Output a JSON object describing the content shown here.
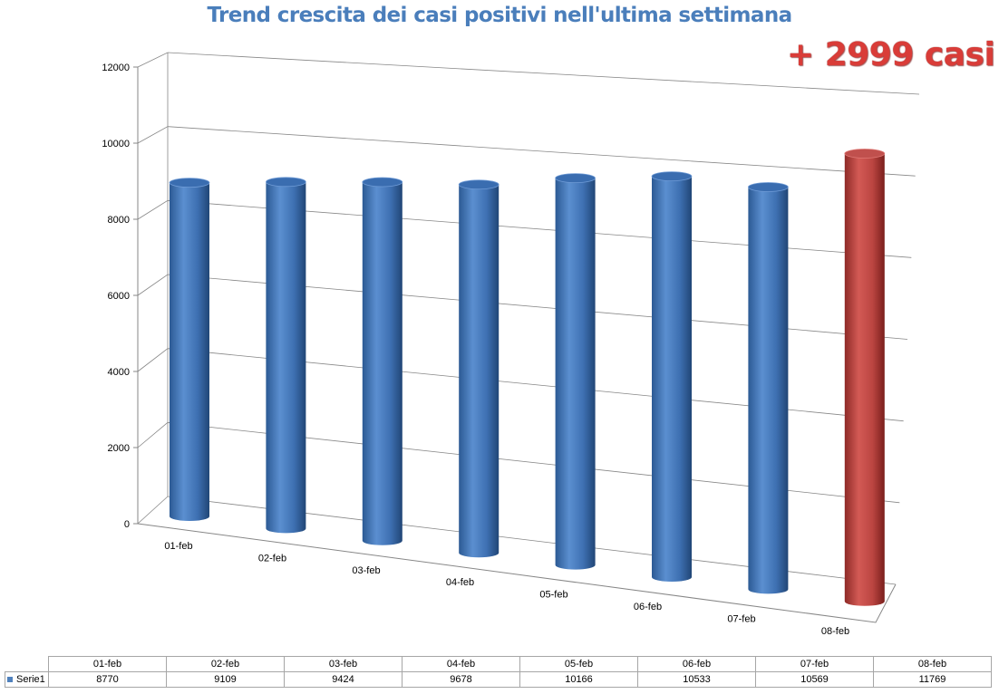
{
  "chart_data": {
    "type": "bar",
    "title": "Trend crescita dei casi positivi nell'ultima settimana",
    "annotation": "+ 2999 casi",
    "categories": [
      "01-feb",
      "02-feb",
      "03-feb",
      "04-feb",
      "05-feb",
      "06-feb",
      "07-feb",
      "08-feb"
    ],
    "series": [
      {
        "name": "Serie1",
        "values": [
          8770,
          9109,
          9424,
          9678,
          10166,
          10533,
          10569,
          11769
        ]
      }
    ],
    "yticks": [
      "0",
      "2000",
      "4000",
      "6000",
      "8000",
      "10000",
      "12000"
    ],
    "ylim": [
      0,
      12000
    ],
    "grid": true,
    "legend": "data-table",
    "colors": {
      "series": "#4f81bd",
      "highlight": "#c0504d",
      "highlight_index": 7
    }
  }
}
